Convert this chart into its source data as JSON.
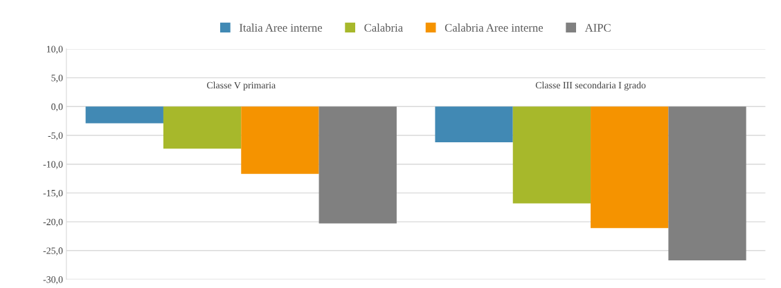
{
  "chart_data": {
    "type": "bar",
    "categories": [
      "Classe V primaria",
      "Classe III secondaria I grado"
    ],
    "series": [
      {
        "name": "Italia Aree interne",
        "color": "#4189b4",
        "values": [
          -2.9,
          -6.2
        ]
      },
      {
        "name": "Calabria",
        "color": "#a7b82b",
        "values": [
          -7.3,
          -16.8
        ]
      },
      {
        "name": "Calabria Aree interne",
        "color": "#f59300",
        "values": [
          -11.7,
          -21.1
        ]
      },
      {
        "name": "AIPC",
        "color": "#808080",
        "values": [
          -20.3,
          -26.7
        ]
      }
    ],
    "ylim": [
      -30,
      10
    ],
    "yticks": [
      {
        "value": -30,
        "label": "-30,0"
      },
      {
        "value": -25,
        "label": "-25,0"
      },
      {
        "value": -20,
        "label": "-20,0"
      },
      {
        "value": -15,
        "label": "-15,0"
      },
      {
        "value": -10,
        "label": "-10,0"
      },
      {
        "value": -5,
        "label": "-5,0"
      },
      {
        "value": 0,
        "label": "0,0"
      },
      {
        "value": 5,
        "label": "5,0"
      },
      {
        "value": 10,
        "label": "10,0"
      }
    ],
    "grid": "y",
    "legend": "top"
  }
}
